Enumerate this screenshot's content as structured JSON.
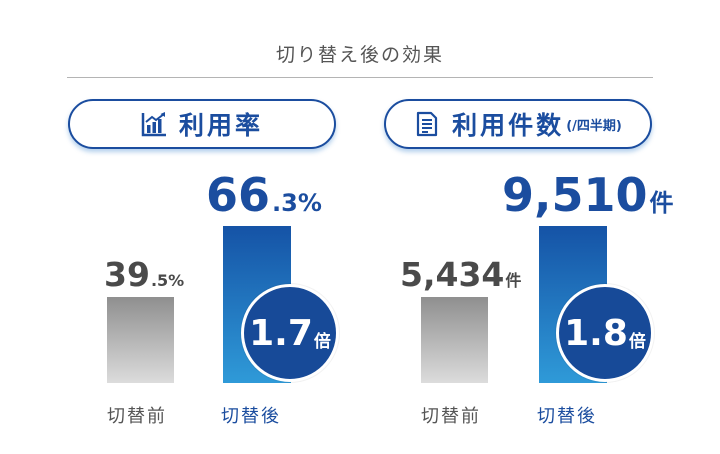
{
  "title": "切り替え後の効果",
  "colors": {
    "accent": "#1b4d9f",
    "circle": "#174a98",
    "bar_after_top": "#1553a6",
    "bar_after_bottom": "#2f9ad8",
    "bar_before_top": "#8f8f8f",
    "bar_before_bottom": "#dcdcdc"
  },
  "panels": [
    {
      "icon": "bar-chart-icon",
      "label": "利用率",
      "sublabel": "",
      "before": {
        "category": "切替前",
        "value_text": "39",
        "unit": ".5%"
      },
      "after": {
        "category": "切替後",
        "value_text": "66",
        "unit": ".3%"
      },
      "ratio": {
        "value_text": "1.7",
        "unit": "倍"
      }
    },
    {
      "icon": "document-icon",
      "label": "利用件数",
      "sublabel": "(/四半期)",
      "before": {
        "category": "切替前",
        "value_text": "5,434",
        "unit": "件"
      },
      "after": {
        "category": "切替後",
        "value_text": "9,510",
        "unit": "件"
      },
      "ratio": {
        "value_text": "1.8",
        "unit": "倍"
      }
    }
  ],
  "chart_data": [
    {
      "type": "bar",
      "title": "利用率",
      "categories": [
        "切替前",
        "切替後"
      ],
      "values": [
        39.5,
        66.3
      ],
      "unit": "%",
      "ratio": 1.7
    },
    {
      "type": "bar",
      "title": "利用件数",
      "subtitle": "(/四半期)",
      "categories": [
        "切替前",
        "切替後"
      ],
      "values": [
        5434,
        9510
      ],
      "unit": "件",
      "ratio": 1.8
    }
  ]
}
